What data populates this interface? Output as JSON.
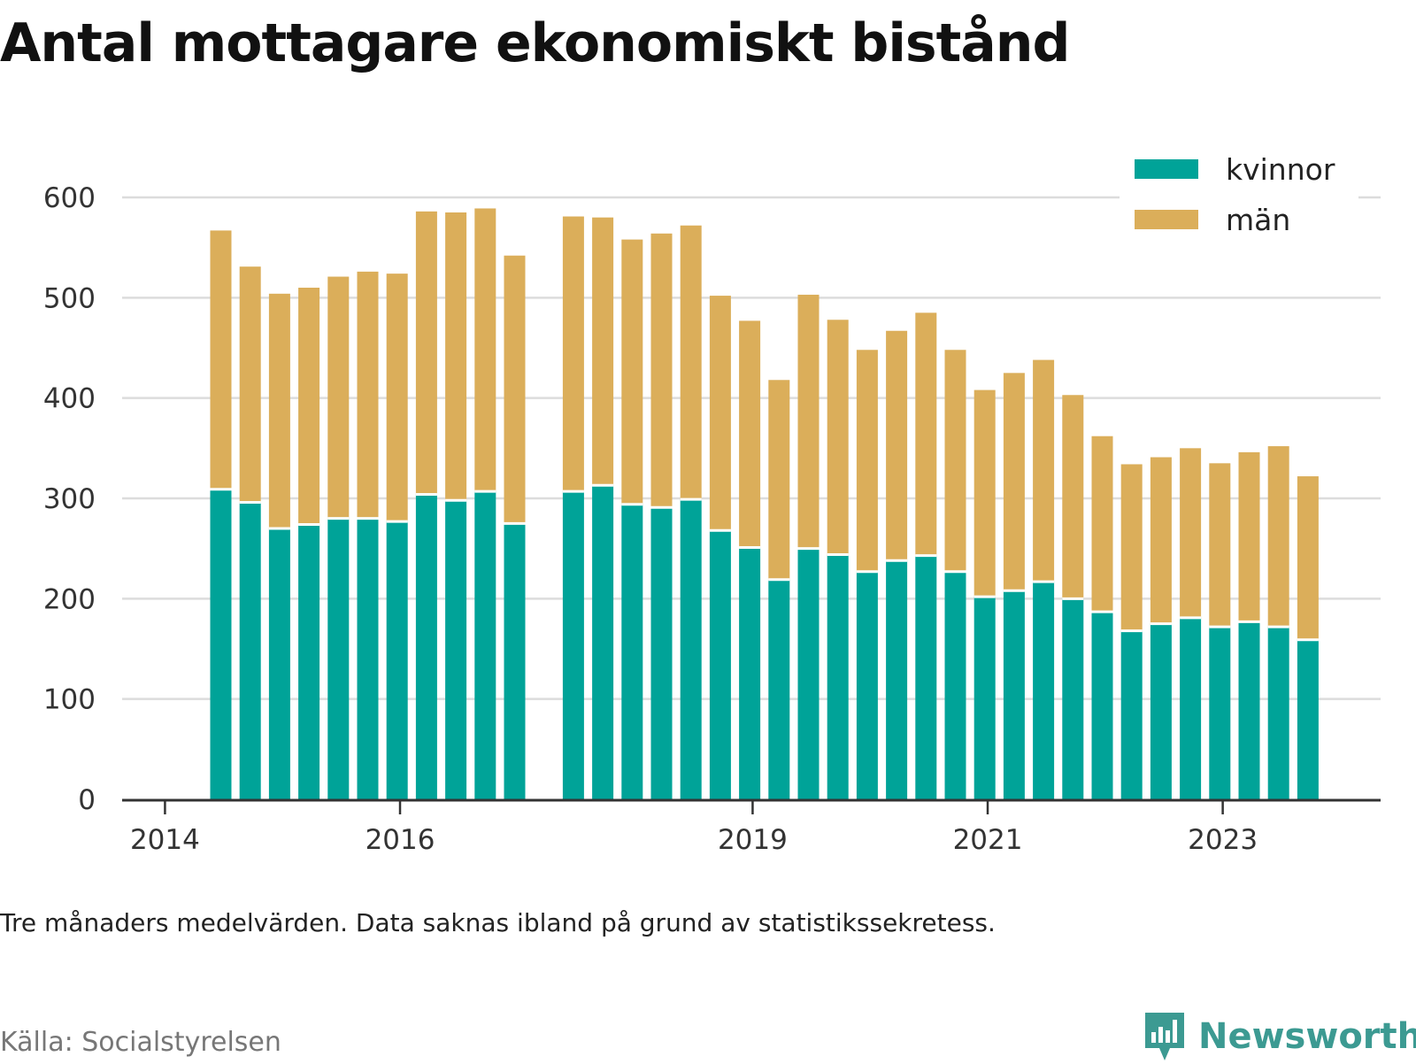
{
  "title": "Antal mottagare ekonomiskt bistånd",
  "footnote": "Tre månaders medelvärden. Data saknas ibland på grund av statistikssekretess.",
  "source": "Källa: Socialstyrelsen",
  "brand": {
    "name": "Newsworthy",
    "logo_icon": "chart-speech-bubble-icon",
    "color": "#3c9a92"
  },
  "chart_data": {
    "type": "bar",
    "stacked": true,
    "x_axis_ticks": [
      "2014",
      "2016",
      "2019",
      "2021",
      "2023"
    ],
    "ylim": [
      0,
      600
    ],
    "y_ticks": [
      0,
      100,
      200,
      300,
      400,
      500,
      600
    ],
    "grid": true,
    "legend_position": "top-right",
    "series": [
      {
        "name": "kvinnor",
        "color": "#00a398",
        "values": [
          309,
          296,
          270,
          274,
          280,
          280,
          277,
          304,
          298,
          307,
          275,
          307,
          313,
          294,
          291,
          299,
          268,
          251,
          219,
          250,
          244,
          227,
          238,
          243,
          227,
          202,
          208,
          217,
          200,
          187,
          168,
          175,
          181,
          172,
          177,
          172,
          159
        ]
      },
      {
        "name": "män",
        "color": "#dbae5a",
        "values": [
          258,
          235,
          234,
          236,
          241,
          246,
          247,
          282,
          287,
          282,
          267,
          274,
          267,
          264,
          273,
          273,
          234,
          226,
          199,
          253,
          234,
          221,
          229,
          242,
          221,
          206,
          217,
          221,
          203,
          175,
          166,
          166,
          169,
          163,
          169,
          180,
          163
        ]
      }
    ],
    "categories": [
      "2014-Q2",
      "2014-Q3",
      "2014-Q4",
      "2015-Q1",
      "2015-Q2",
      "2015-Q3",
      "2015-Q4",
      "2016-Q1",
      "2016-Q2",
      "2016-Q3",
      "2016-Q4",
      "2017-Q3",
      "2017-Q4",
      "2018-Q1",
      "2018-Q2",
      "2018-Q3",
      "2018-Q4",
      "2019-Q1",
      "2019-Q2",
      "2019-Q3",
      "2019-Q4",
      "2020-Q1",
      "2020-Q2",
      "2020-Q3",
      "2020-Q4",
      "2021-Q1",
      "2021-Q2",
      "2021-Q3",
      "2021-Q4",
      "2022-Q1",
      "2022-Q2",
      "2022-Q3",
      "2022-Q4",
      "2023-Q1",
      "2023-Q2",
      "2023-Q3",
      "2023-Q4"
    ],
    "x_slots": [
      1,
      2,
      3,
      4,
      5,
      6,
      7,
      8,
      9,
      10,
      11,
      13,
      14,
      15,
      16,
      17,
      18,
      19,
      20,
      21,
      22,
      23,
      24,
      25,
      26,
      27,
      28,
      29,
      30,
      31,
      32,
      33,
      34,
      35,
      36,
      37,
      38
    ],
    "x_tick_slots": [
      -0.9,
      7.1,
      19.1,
      27.1,
      35.1
    ]
  }
}
